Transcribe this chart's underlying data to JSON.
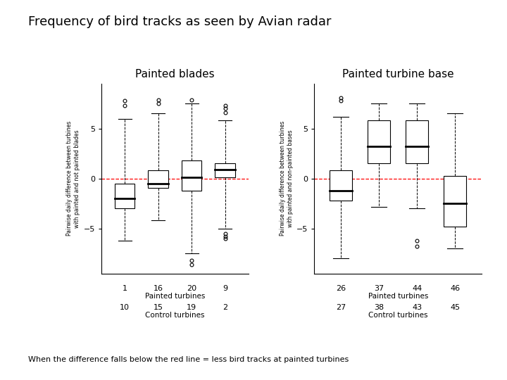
{
  "title": "Frequency of bird tracks as seen by Avian radar",
  "subtitle_left": "Painted blades",
  "subtitle_right": "Painted turbine base",
  "ylabel_left": "Pairwise daily difference between turbines\nwith painted and not painted blades",
  "ylabel_right": "Pairwise daily difference between turbines\nwith painted and non-painted bases",
  "xlabel_painted": "Painted turbines",
  "xlabel_control": "Control turbines",
  "footnote": "When the difference falls below the red line = less bird tracks at painted turbines",
  "background_color": "#ffffff",
  "left_panel": {
    "x_labels_painted": [
      "1",
      "16",
      "20",
      "9"
    ],
    "x_labels_control": [
      "10",
      "15",
      "19",
      "2"
    ],
    "boxes": [
      {
        "q1": -3.0,
        "median": -2.0,
        "q3": -0.5,
        "whisker_low": -6.2,
        "whisker_high": 6.0,
        "outliers_high": [
          7.8,
          7.3
        ],
        "outliers_low": []
      },
      {
        "q1": -0.9,
        "median": -0.5,
        "q3": 0.8,
        "whisker_low": -4.2,
        "whisker_high": 6.5,
        "outliers_high": [
          7.5,
          7.9
        ],
        "outliers_low": []
      },
      {
        "q1": -1.2,
        "median": 0.1,
        "q3": 1.8,
        "whisker_low": -7.5,
        "whisker_high": 7.5,
        "outliers_high": [
          7.9
        ],
        "outliers_low": [
          -8.2,
          -8.6
        ]
      },
      {
        "q1": 0.1,
        "median": 0.9,
        "q3": 1.5,
        "whisker_low": -5.0,
        "whisker_high": 5.8,
        "outliers_high": [
          6.6,
          7.0,
          7.3
        ],
        "outliers_low": [
          -5.5,
          -5.8,
          -6.0
        ]
      }
    ],
    "ylim": [
      -9.5,
      9.5
    ],
    "yticks": [
      -5,
      0,
      5
    ]
  },
  "right_panel": {
    "x_labels_painted": [
      "26",
      "37",
      "44",
      "46"
    ],
    "x_labels_control": [
      "27",
      "38",
      "43",
      "45"
    ],
    "boxes": [
      {
        "q1": -2.2,
        "median": -1.2,
        "q3": 0.8,
        "whisker_low": -8.0,
        "whisker_high": 6.2,
        "outliers_high": [
          7.8,
          8.1
        ],
        "outliers_low": []
      },
      {
        "q1": 1.5,
        "median": 3.2,
        "q3": 5.8,
        "whisker_low": -2.8,
        "whisker_high": 7.5,
        "outliers_high": [],
        "outliers_low": []
      },
      {
        "q1": 1.5,
        "median": 3.2,
        "q3": 5.8,
        "whisker_low": -3.0,
        "whisker_high": 7.5,
        "outliers_high": [],
        "outliers_low": [
          -6.2,
          -6.8
        ]
      },
      {
        "q1": -4.8,
        "median": -2.5,
        "q3": 0.3,
        "whisker_low": -7.0,
        "whisker_high": 6.5,
        "outliers_high": [],
        "outliers_low": []
      }
    ],
    "ylim": [
      -9.5,
      9.5
    ],
    "yticks": [
      -5,
      0,
      5
    ]
  }
}
